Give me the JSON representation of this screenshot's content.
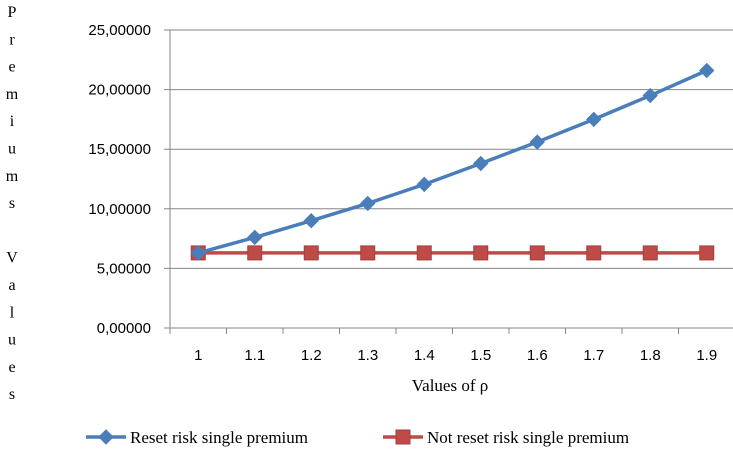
{
  "chart_data": {
    "type": "line",
    "title": "",
    "xlabel": "Values of ρ",
    "ylabel": "Premiums Values",
    "ylabel_letters": [
      "P",
      "r",
      "e",
      "m",
      "i",
      "u",
      "m",
      "s",
      "",
      "V",
      "a",
      "l",
      "u",
      "e",
      "s"
    ],
    "categories": [
      "1",
      "1.1",
      "1.2",
      "1.3",
      "1.4",
      "1.5",
      "1.6",
      "1.7",
      "1.8",
      "1.9"
    ],
    "ylim": [
      0,
      25
    ],
    "yticks": [
      0,
      5,
      10,
      15,
      20,
      25
    ],
    "ytick_labels": [
      "0,00000",
      "5,00000",
      "10,00000",
      "15,00000",
      "20,00000",
      "25,00000"
    ],
    "grid": "horizontal",
    "legend_position": "bottom",
    "series": [
      {
        "name": "Reset risk single premium",
        "color": "#4a7ebb",
        "marker": "diamond",
        "values": [
          6.3,
          7.6,
          9.0,
          10.45,
          12.05,
          13.8,
          15.6,
          17.5,
          19.5,
          21.6
        ]
      },
      {
        "name": "Not reset risk single premium",
        "color": "#be4b48",
        "marker": "square",
        "values": [
          6.3,
          6.3,
          6.3,
          6.3,
          6.3,
          6.3,
          6.3,
          6.3,
          6.3,
          6.3
        ]
      }
    ]
  }
}
